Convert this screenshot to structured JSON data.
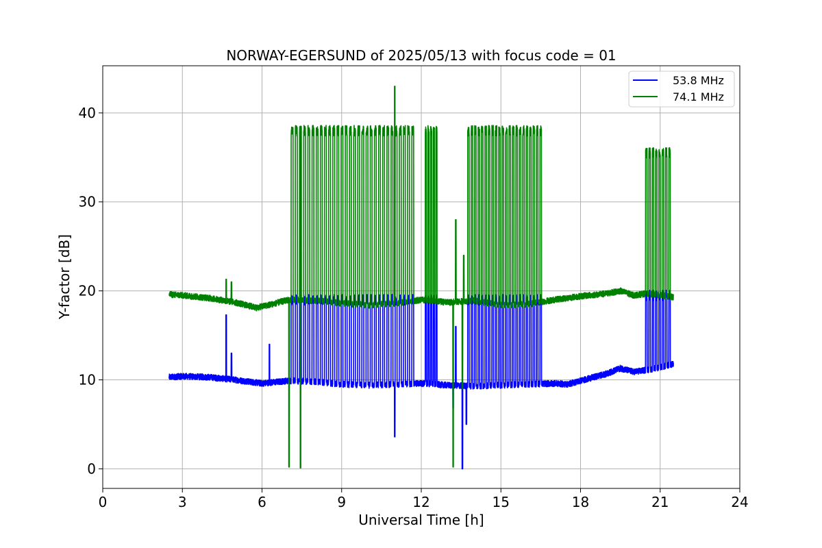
{
  "chart_data": {
    "type": "line",
    "title": "NORWAY-EGERSUND of 2025/05/13 with focus code = 01",
    "xlabel": "Universal Time [h]",
    "ylabel": "Y-factor [dB]",
    "xlim": [
      0,
      24
    ],
    "ylim": [
      -2.2,
      45.3
    ],
    "xticks": [
      0,
      3,
      6,
      9,
      12,
      15,
      18,
      21,
      24
    ],
    "yticks": [
      0,
      10,
      20,
      30,
      40
    ],
    "grid": true,
    "legend_position": "top-right",
    "series": [
      {
        "name": "53.8 MHz",
        "color": "#0000ff",
        "baseline": [
          [
            2.5,
            10.3
          ],
          [
            3.0,
            10.4
          ],
          [
            4.0,
            10.3
          ],
          [
            5.0,
            10.0
          ],
          [
            6.0,
            9.6
          ],
          [
            7.0,
            9.9
          ],
          [
            8.0,
            9.8
          ],
          [
            9.0,
            9.5
          ],
          [
            10.0,
            9.4
          ],
          [
            11.0,
            9.5
          ],
          [
            12.0,
            9.6
          ],
          [
            13.0,
            9.4
          ],
          [
            14.0,
            9.3
          ],
          [
            15.0,
            9.4
          ],
          [
            16.0,
            9.5
          ],
          [
            17.0,
            9.6
          ],
          [
            17.5,
            9.5
          ],
          [
            18.0,
            9.9
          ],
          [
            19.0,
            10.7
          ],
          [
            19.5,
            11.3
          ],
          [
            20.0,
            10.9
          ],
          [
            20.5,
            11.1
          ],
          [
            21.0,
            11.4
          ],
          [
            21.5,
            11.8
          ]
        ],
        "spikes": [
          [
            4.65,
            17.3
          ],
          [
            4.85,
            13.0
          ],
          [
            6.28,
            14.0
          ],
          [
            11.0,
            3.6
          ],
          [
            13.2,
            6.8
          ],
          [
            13.3,
            16.0
          ],
          [
            13.55,
            0.0
          ],
          [
            13.7,
            5.0
          ]
        ],
        "burst_peak": 19.0,
        "burst_peak_late": 19.5
      },
      {
        "name": "74.1 MHz",
        "color": "#008000",
        "baseline": [
          [
            2.5,
            19.6
          ],
          [
            3.0,
            19.5
          ],
          [
            4.0,
            19.2
          ],
          [
            5.0,
            18.7
          ],
          [
            5.8,
            18.1
          ],
          [
            6.5,
            18.6
          ],
          [
            7.0,
            19.0
          ],
          [
            8.0,
            18.9
          ],
          [
            9.0,
            18.6
          ],
          [
            10.0,
            18.4
          ],
          [
            11.0,
            18.6
          ],
          [
            12.0,
            19.0
          ],
          [
            13.0,
            18.7
          ],
          [
            14.0,
            18.9
          ],
          [
            15.0,
            18.4
          ],
          [
            16.0,
            18.5
          ],
          [
            17.0,
            19.0
          ],
          [
            18.0,
            19.4
          ],
          [
            19.0,
            19.7
          ],
          [
            19.5,
            20.0
          ],
          [
            20.0,
            19.5
          ],
          [
            20.5,
            19.7
          ],
          [
            21.0,
            19.5
          ],
          [
            21.5,
            19.3
          ]
        ],
        "spikes": [
          [
            4.65,
            21.3
          ],
          [
            4.85,
            21.0
          ],
          [
            7.02,
            0.2
          ],
          [
            7.45,
            0.1
          ],
          [
            11.0,
            43.0
          ],
          [
            13.2,
            0.2
          ],
          [
            13.3,
            28.0
          ],
          [
            13.55,
            9.0
          ],
          [
            13.6,
            24.0
          ]
        ],
        "burst_peak": 38.0,
        "burst_peak_late": 35.5
      }
    ],
    "bursts": [
      {
        "start": 7.1,
        "end": 11.8,
        "count": 30
      },
      {
        "start": 12.15,
        "end": 12.65,
        "count": 5
      },
      {
        "start": 13.75,
        "end": 16.6,
        "count": 22
      },
      {
        "start": 20.45,
        "end": 21.45,
        "count": 8
      }
    ]
  }
}
